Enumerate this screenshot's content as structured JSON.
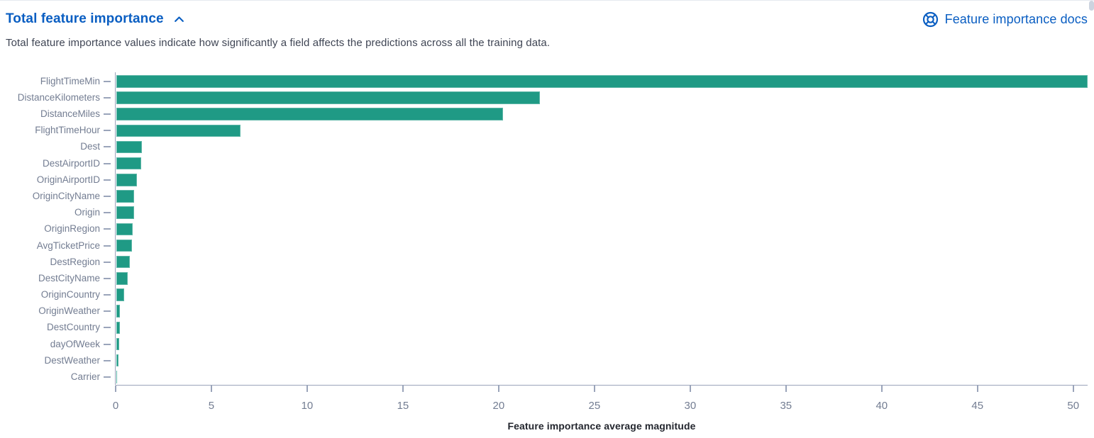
{
  "header": {
    "title": "Total feature importance",
    "docs_link_label": "Feature importance docs",
    "description": "Total feature importance values indicate how significantly a field affects the predictions across all the training data."
  },
  "colors": {
    "link": "#0a5ec2",
    "bar": "#1f9a85",
    "axis": "#9aa4ba",
    "tick_label": "#737d92",
    "text": "#3f4554",
    "axis_title": "#23262e",
    "scrollbar": "#ccd3df",
    "top_border": "#e6e9f0"
  },
  "chart_data": {
    "type": "bar",
    "orientation": "horizontal",
    "title": "",
    "xlabel": "Feature importance average magnitude",
    "ylabel": "",
    "categories": [
      "FlightTimeMin",
      "DistanceKilometers",
      "DistanceMiles",
      "FlightTimeHour",
      "Dest",
      "DestAirportID",
      "OriginAirportID",
      "OriginCityName",
      "Origin",
      "OriginRegion",
      "AvgTicketPrice",
      "DestRegion",
      "DestCityName",
      "OriginCountry",
      "OriginWeather",
      "DestCountry",
      "dayOfWeek",
      "DestWeather",
      "Carrier"
    ],
    "values": [
      50.7,
      22.1,
      20.2,
      6.5,
      1.35,
      1.31,
      1.07,
      0.94,
      0.92,
      0.87,
      0.83,
      0.7,
      0.59,
      0.39,
      0.2,
      0.18,
      0.14,
      0.12,
      0.03
    ],
    "xlim": [
      0,
      50.75
    ],
    "x_ticks": [
      0,
      5,
      10,
      15,
      20,
      25,
      30,
      35,
      40,
      45,
      50
    ],
    "grid": false,
    "legend": "none",
    "bar_color": "#1f9a85"
  }
}
